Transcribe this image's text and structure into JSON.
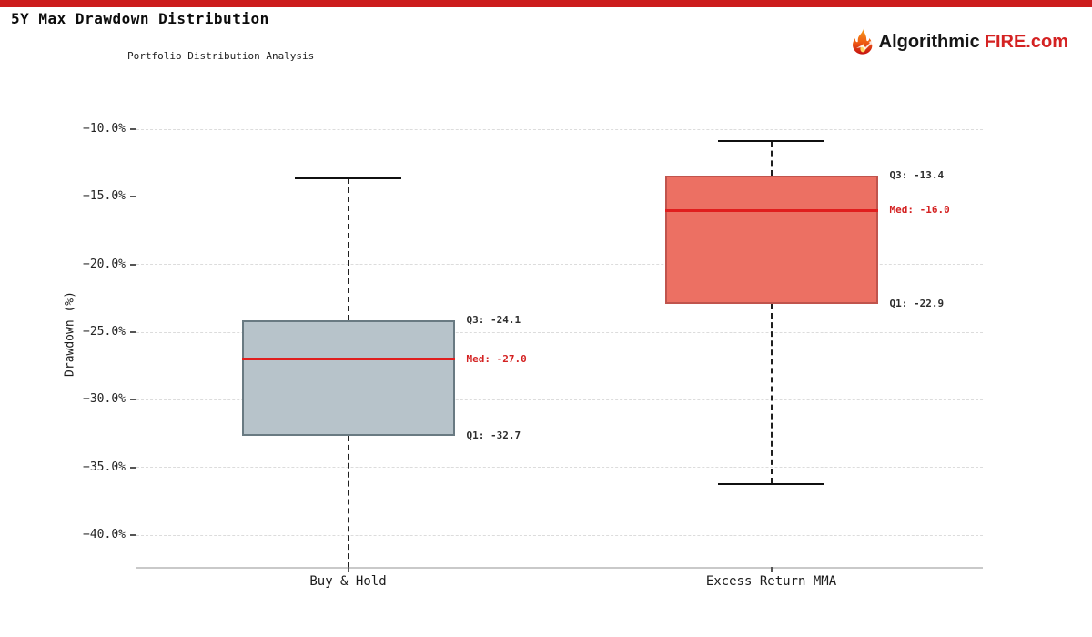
{
  "page": {
    "title": "5Y Max Drawdown Distribution",
    "subtitle": "Portfolio Distribution Analysis"
  },
  "brand": {
    "name_black": "Algorithmic",
    "name_red": "FIRE.com",
    "flame_icon": "flame-icon",
    "accent_red": "#cc1d1d"
  },
  "chart_data": {
    "type": "boxplot",
    "title": "5Y Max Drawdown Distribution",
    "subtitle": "Portfolio Distribution Analysis",
    "ylabel": "Drawdown (%)",
    "ylim": [
      -42.5,
      -7.9
    ],
    "grid": "horizontal-dashed",
    "legend": "none",
    "y_ticks": [
      {
        "value": -10,
        "label": "−10.0%"
      },
      {
        "value": -15,
        "label": "−15.0%"
      },
      {
        "value": -20,
        "label": "−20.0%"
      },
      {
        "value": -25,
        "label": "−25.0%"
      },
      {
        "value": -30,
        "label": "−30.0%"
      },
      {
        "value": -35,
        "label": "−35.0%"
      },
      {
        "value": -40,
        "label": "−40.0%"
      }
    ],
    "categories": [
      "Buy & Hold",
      "Excess Return MMA"
    ],
    "boxes": [
      {
        "category": "Buy & Hold",
        "q1": -32.7,
        "median": -27.0,
        "q3": -24.1,
        "whisker_high": -13.6,
        "whisker_low": -42.4,
        "whisker_low_cap_visible": false,
        "fill": "#b7c3ca",
        "stroke": "#697a82",
        "labels": {
          "q3": "Q3: -24.1",
          "med": "Med: -27.0",
          "q1": "Q1: -32.7"
        }
      },
      {
        "category": "Excess Return MMA",
        "q1": -22.9,
        "median": -16.0,
        "q3": -13.4,
        "whisker_high": -10.9,
        "whisker_low": -36.2,
        "whisker_low_cap_visible": true,
        "fill": "#ec7063",
        "stroke": "#c0544d",
        "labels": {
          "q3": "Q3: -13.4",
          "med": "Med: -16.0",
          "q1": "Q1: -22.9"
        }
      }
    ],
    "median_line_color": "#e01e1e",
    "median_label_color": "#d42222"
  }
}
